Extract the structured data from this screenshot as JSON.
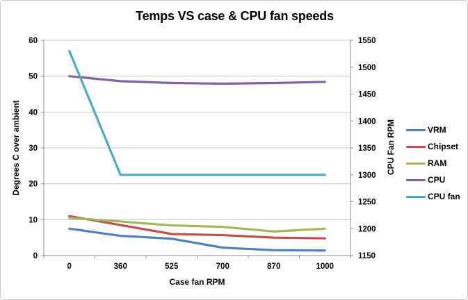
{
  "chart_data": {
    "type": "line",
    "title": "Temps VS case & CPU fan speeds",
    "xlabel": "Case fan RPM",
    "ylabel_left": "Degrees C over ambient",
    "ylabel_right": "CPU Fan RPM",
    "categories": [
      "0",
      "360",
      "525",
      "700",
      "870",
      "1000"
    ],
    "left_axis": {
      "min": 0,
      "max": 60,
      "ticks": [
        0,
        10,
        20,
        30,
        40,
        50,
        60
      ]
    },
    "right_axis": {
      "min": 1150,
      "max": 1550,
      "ticks": [
        1150,
        1200,
        1250,
        1300,
        1350,
        1400,
        1450,
        1500,
        1550
      ]
    },
    "grid": true,
    "legend_position": "right",
    "series": [
      {
        "name": "VRM",
        "axis": "left",
        "color": "#4F81BD",
        "values": [
          7.5,
          5.5,
          4.7,
          2.2,
          1.5,
          1.4
        ]
      },
      {
        "name": "Chipset",
        "axis": "left",
        "color": "#C0504D",
        "values": [
          11,
          8.5,
          6.0,
          5.7,
          5.0,
          4.8
        ]
      },
      {
        "name": "RAM",
        "axis": "left",
        "color": "#9BBB59",
        "values": [
          10.5,
          9.5,
          8.4,
          8.0,
          6.7,
          7.5
        ]
      },
      {
        "name": "CPU",
        "axis": "left",
        "color": "#8064A2",
        "values": [
          50,
          48.6,
          48.1,
          47.9,
          48.1,
          48.4
        ]
      },
      {
        "name": "CPU fan",
        "axis": "right",
        "color": "#4BACC6",
        "values": [
          1530,
          1300,
          1300,
          1300,
          1300,
          1300
        ]
      }
    ],
    "colors": {
      "gridline": "#C6C6C6",
      "axis_line": "#8C8C8C",
      "frame_border": "#C9C9C9",
      "text": "#000000"
    }
  }
}
